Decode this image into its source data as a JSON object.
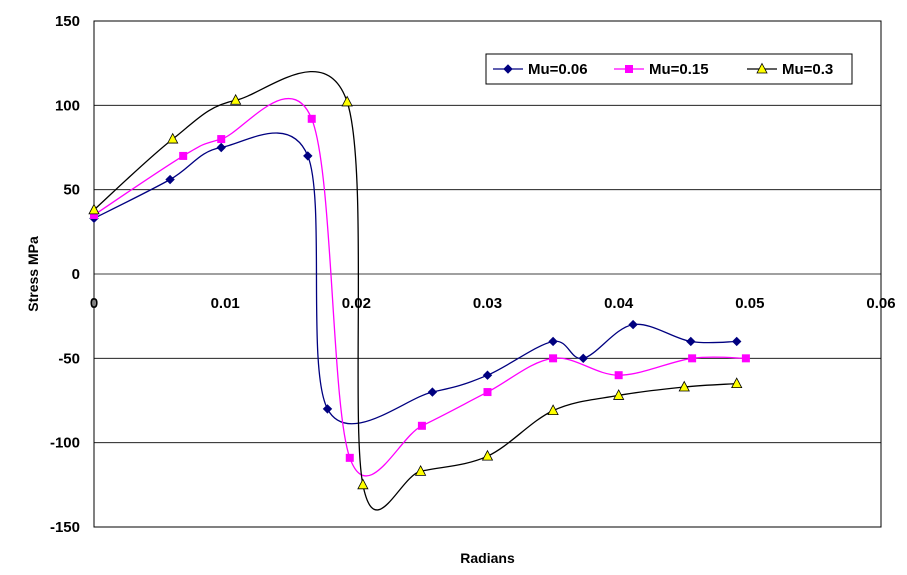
{
  "chart_data": {
    "type": "scatter",
    "title": "",
    "xlabel": "Radians",
    "ylabel": "Stress MPa",
    "xlim": [
      0,
      0.06
    ],
    "ylim": [
      -150,
      150
    ],
    "x_ticks": [
      "0",
      "0.01",
      "0.02",
      "0.03",
      "0.04",
      "0.05",
      "0.06"
    ],
    "y_ticks": [
      "150",
      "100",
      "50",
      "0",
      "-50",
      "-100",
      "-150"
    ],
    "grid": "horizontal",
    "legend_position": "top-right",
    "series": [
      {
        "name": "Mu=0.06",
        "color": "#000080",
        "marker": "diamond",
        "x": [
          0,
          0.0058,
          0.0097,
          0.0163,
          0.0178,
          0.0258,
          0.03,
          0.035,
          0.0373,
          0.0411,
          0.0455,
          0.049
        ],
        "y": [
          33,
          56,
          75,
          70,
          -80,
          -70,
          -60,
          -40,
          -50,
          -30,
          -40,
          -40
        ]
      },
      {
        "name": "Mu=0.15",
        "color": "#FF00FF",
        "marker": "square",
        "x": [
          0,
          0.0068,
          0.0097,
          0.0166,
          0.0195,
          0.025,
          0.03,
          0.035,
          0.04,
          0.0456,
          0.0497
        ],
        "y": [
          35,
          70,
          80,
          92,
          -109,
          -90,
          -70,
          -50,
          -60,
          -50,
          -50
        ]
      },
      {
        "name": "Mu=0.3",
        "color": "#000000",
        "fill": "#FFFF00",
        "marker": "triangle",
        "x": [
          0,
          0.006,
          0.0108,
          0.0193,
          0.0205,
          0.0249,
          0.03,
          0.035,
          0.04,
          0.045,
          0.049
        ],
        "y": [
          38,
          80,
          103,
          102,
          -125,
          -117,
          -108,
          -81,
          -72,
          -67,
          -65
        ]
      }
    ]
  }
}
